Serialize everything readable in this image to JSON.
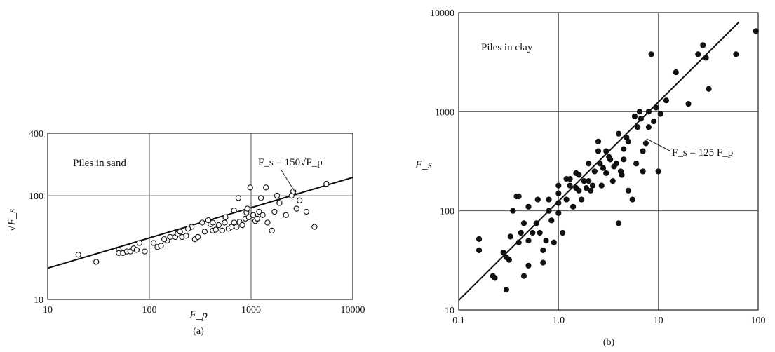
{
  "chart_data": [
    {
      "type": "scatter",
      "panel_label": "(a)",
      "annotation": "Piles in sand",
      "equation": "F_s = 150√F_p",
      "xlabel": "F_p",
      "ylabel": "√F_s",
      "xscale": "log",
      "yscale": "log",
      "xlim": [
        10,
        10000
      ],
      "ylim": [
        10,
        400
      ],
      "x_ticks": [
        "10",
        "100",
        "1000",
        "10000"
      ],
      "y_ticks": [
        "10",
        "100",
        "400"
      ],
      "grid": true,
      "marker": "open-circle",
      "fit_line": {
        "x": [
          10,
          10000
        ],
        "y": [
          20,
          150
        ]
      },
      "points": [
        [
          20,
          27
        ],
        [
          30,
          23
        ],
        [
          50,
          30
        ],
        [
          50,
          28
        ],
        [
          55,
          28
        ],
        [
          60,
          29
        ],
        [
          65,
          29
        ],
        [
          70,
          31
        ],
        [
          75,
          30
        ],
        [
          80,
          35
        ],
        [
          90,
          29
        ],
        [
          110,
          35
        ],
        [
          120,
          32
        ],
        [
          130,
          33
        ],
        [
          150,
          37
        ],
        [
          180,
          40
        ],
        [
          190,
          43
        ],
        [
          200,
          45
        ],
        [
          210,
          40
        ],
        [
          230,
          41
        ],
        [
          280,
          38
        ],
        [
          300,
          40
        ],
        [
          330,
          55
        ],
        [
          350,
          45
        ],
        [
          400,
          53
        ],
        [
          420,
          46
        ],
        [
          450,
          47
        ],
        [
          480,
          52
        ],
        [
          520,
          46
        ],
        [
          550,
          55
        ],
        [
          600,
          48
        ],
        [
          640,
          50
        ],
        [
          680,
          55
        ],
        [
          720,
          50
        ],
        [
          770,
          56
        ],
        [
          820,
          52
        ],
        [
          880,
          60
        ],
        [
          900,
          69
        ],
        [
          920,
          75
        ],
        [
          950,
          62
        ],
        [
          980,
          120
        ],
        [
          1050,
          65
        ],
        [
          1100,
          57
        ],
        [
          1150,
          60
        ],
        [
          1200,
          70
        ],
        [
          1300,
          65
        ],
        [
          1400,
          120
        ],
        [
          1450,
          55
        ],
        [
          1600,
          46
        ],
        [
          1800,
          100
        ],
        [
          2200,
          65
        ],
        [
          2500,
          100
        ],
        [
          2800,
          75
        ],
        [
          3000,
          90
        ],
        [
          3500,
          70
        ],
        [
          4200,
          50
        ],
        [
          5500,
          130
        ],
        [
          2600,
          110
        ],
        [
          1900,
          85
        ],
        [
          1700,
          70
        ],
        [
          1250,
          95
        ],
        [
          750,
          95
        ],
        [
          680,
          72
        ],
        [
          560,
          62
        ],
        [
          380,
          58
        ],
        [
          260,
          50
        ],
        [
          160,
          40
        ],
        [
          140,
          38
        ],
        [
          240,
          48
        ],
        [
          420,
          55
        ]
      ]
    },
    {
      "type": "scatter",
      "panel_label": "(b)",
      "annotation": "Piles in clay",
      "equation": "F_s = 125 F_p",
      "xlabel": "",
      "ylabel": "F_s",
      "xscale": "log",
      "yscale": "log",
      "xlim": [
        0.1,
        100
      ],
      "ylim": [
        10,
        10000
      ],
      "x_ticks": [
        "0.1",
        "1.0",
        "10",
        "100"
      ],
      "y_ticks": [
        "10",
        "100",
        "1000",
        "10000"
      ],
      "grid": true,
      "marker": "filled-circle",
      "fit_line": {
        "x": [
          0.1,
          64
        ],
        "y": [
          12.5,
          8000
        ]
      },
      "points": [
        [
          0.16,
          52
        ],
        [
          0.16,
          40
        ],
        [
          0.22,
          22
        ],
        [
          0.23,
          21
        ],
        [
          0.28,
          38
        ],
        [
          0.3,
          34
        ],
        [
          0.3,
          16
        ],
        [
          0.32,
          32
        ],
        [
          0.33,
          55
        ],
        [
          0.35,
          100
        ],
        [
          0.38,
          140
        ],
        [
          0.4,
          140
        ],
        [
          0.4,
          48
        ],
        [
          0.42,
          60
        ],
        [
          0.45,
          22
        ],
        [
          0.45,
          75
        ],
        [
          0.5,
          50
        ],
        [
          0.5,
          110
        ],
        [
          0.5,
          28
        ],
        [
          0.55,
          60
        ],
        [
          0.6,
          75
        ],
        [
          0.62,
          130
        ],
        [
          0.65,
          60
        ],
        [
          0.7,
          40
        ],
        [
          0.7,
          30
        ],
        [
          0.75,
          50
        ],
        [
          0.8,
          100
        ],
        [
          0.8,
          130
        ],
        [
          0.85,
          80
        ],
        [
          0.9,
          48
        ],
        [
          1.0,
          95
        ],
        [
          1.0,
          120
        ],
        [
          1.0,
          150
        ],
        [
          1.0,
          180
        ],
        [
          1.1,
          60
        ],
        [
          1.2,
          130
        ],
        [
          1.2,
          210
        ],
        [
          1.3,
          180
        ],
        [
          1.4,
          110
        ],
        [
          1.5,
          170
        ],
        [
          1.5,
          240
        ],
        [
          1.6,
          160
        ],
        [
          1.7,
          130
        ],
        [
          1.8,
          200
        ],
        [
          1.9,
          170
        ],
        [
          2.0,
          300
        ],
        [
          2.0,
          200
        ],
        [
          2.1,
          160
        ],
        [
          2.2,
          180
        ],
        [
          2.5,
          500
        ],
        [
          2.5,
          400
        ],
        [
          2.6,
          300
        ],
        [
          2.8,
          270
        ],
        [
          3.0,
          240
        ],
        [
          3.0,
          400
        ],
        [
          3.2,
          350
        ],
        [
          3.5,
          200
        ],
        [
          3.6,
          280
        ],
        [
          3.8,
          300
        ],
        [
          4.0,
          600
        ],
        [
          4.0,
          75
        ],
        [
          4.2,
          250
        ],
        [
          4.5,
          420
        ],
        [
          4.5,
          330
        ],
        [
          5.0,
          500
        ],
        [
          5.0,
          160
        ],
        [
          5.5,
          130
        ],
        [
          5.8,
          900
        ],
        [
          6.0,
          300
        ],
        [
          6.2,
          700
        ],
        [
          6.5,
          1000
        ],
        [
          7.0,
          250
        ],
        [
          7.0,
          400
        ],
        [
          7.5,
          480
        ],
        [
          8.0,
          700
        ],
        [
          8.0,
          1000
        ],
        [
          8.5,
          3800
        ],
        [
          9.0,
          800
        ],
        [
          9.5,
          1100
        ],
        [
          10.0,
          250
        ],
        [
          10.5,
          950
        ],
        [
          12.0,
          1300
        ],
        [
          15.0,
          2500
        ],
        [
          20.0,
          1200
        ],
        [
          25.0,
          3800
        ],
        [
          28.0,
          4700
        ],
        [
          30.0,
          3500
        ],
        [
          32.0,
          1700
        ],
        [
          60.0,
          3800
        ],
        [
          95.0,
          6500
        ],
        [
          1.3,
          210
        ],
        [
          1.6,
          230
        ],
        [
          2.3,
          250
        ],
        [
          2.7,
          180
        ],
        [
          3.3,
          330
        ],
        [
          4.3,
          230
        ],
        [
          4.8,
          550
        ],
        [
          6.7,
          850
        ]
      ]
    }
  ]
}
